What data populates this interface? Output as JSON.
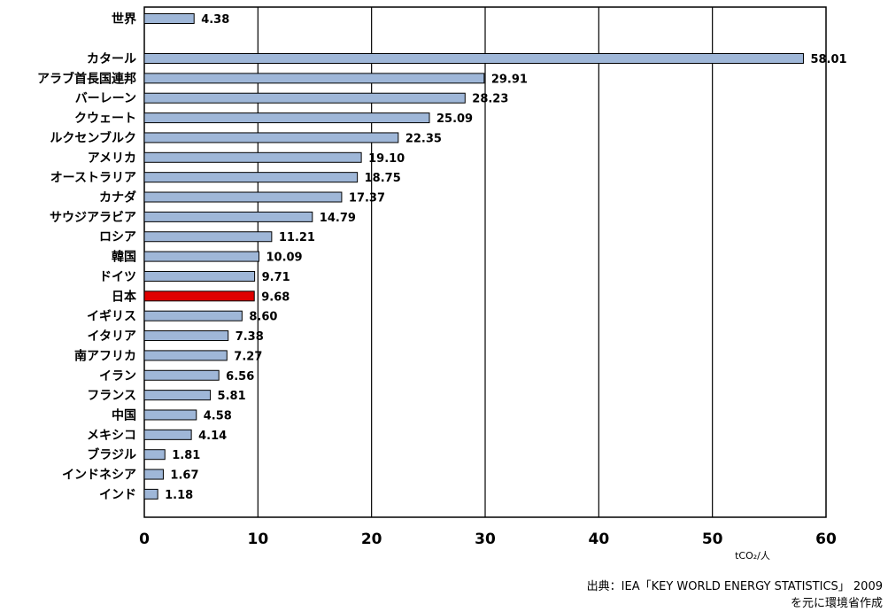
{
  "chart_data": {
    "type": "bar",
    "orientation": "horizontal",
    "title": "",
    "xlabel": "",
    "ylabel": "",
    "unit": "tCO₂/人",
    "xlim": [
      0,
      60
    ],
    "x_ticks": [
      0,
      10,
      20,
      30,
      40,
      50,
      60
    ],
    "grid": "vertical lines at each 10",
    "colors": {
      "default": "#9FB7D8",
      "highlight": "#E00000",
      "border": "#000000"
    },
    "categories": [
      "世界",
      "カタール",
      "アラブ首長国連邦",
      "バーレーン",
      "クウェート",
      "ルクセンブルク",
      "アメリカ",
      "オーストラリア",
      "カナダ",
      "サウジアラビア",
      "ロシア",
      "韓国",
      "ドイツ",
      "日本",
      "イギリス",
      "イタリア",
      "南アフリカ",
      "イラン",
      "フランス",
      "中国",
      "メキシコ",
      "ブラジル",
      "インドネシア",
      "インド"
    ],
    "values": [
      4.38,
      58.01,
      29.91,
      28.23,
      25.09,
      22.35,
      19.1,
      18.75,
      17.37,
      14.79,
      11.21,
      10.09,
      9.71,
      9.68,
      8.6,
      7.38,
      7.27,
      6.56,
      5.81,
      4.58,
      4.14,
      1.81,
      1.67,
      1.18
    ],
    "value_labels": [
      "4.38",
      "58.01",
      "29.91",
      "28.23",
      "25.09",
      "22.35",
      "19.10",
      "18.75",
      "17.37",
      "14.79",
      "11.21",
      "10.09",
      "9.71",
      "9.68",
      "8.60",
      "7.38",
      "7.27",
      "6.56",
      "5.81",
      "4.58",
      "4.14",
      "1.81",
      "1.67",
      "1.18"
    ],
    "highlight": "日本"
  },
  "source": {
    "line1": "出典：IEA「KEY WORLD ENERGY STATISTICS」 2009",
    "line2": "を元に環境省作成"
  }
}
